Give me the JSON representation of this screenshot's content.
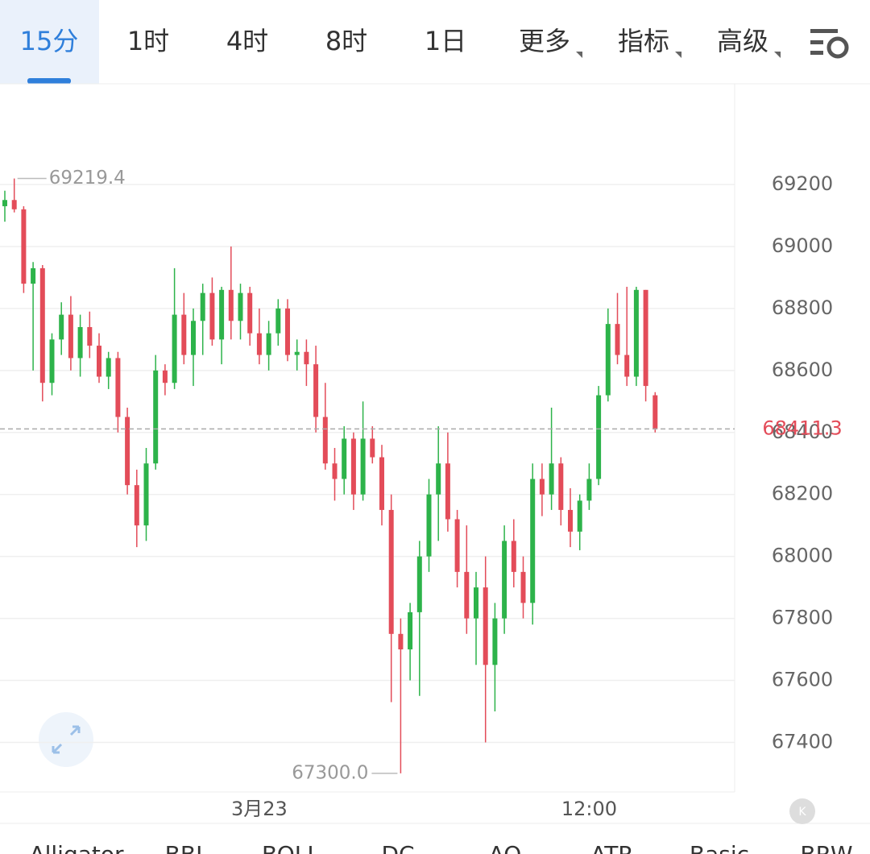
{
  "tabs": [
    "15分",
    "1时",
    "4时",
    "8时",
    "1日",
    "更多",
    "指标",
    "高级"
  ],
  "chart_data": {
    "type": "candlestick",
    "categories": [
      null,
      null,
      null,
      null,
      null,
      null,
      null,
      null,
      null,
      null,
      null,
      null,
      null,
      null,
      null,
      null,
      null,
      null,
      null,
      null,
      null,
      null,
      null,
      null,
      null,
      null,
      null,
      "3月23",
      null,
      null,
      null,
      null,
      null,
      null,
      null,
      null,
      null,
      null,
      null,
      null,
      null,
      null,
      null,
      null,
      null,
      null,
      null,
      null,
      null,
      null,
      null,
      null,
      null,
      null,
      null,
      null,
      null,
      null,
      null,
      null,
      null,
      null,
      "12:00",
      null,
      null,
      null,
      null,
      null,
      null,
      null
    ],
    "open": [
      69130,
      69150,
      69120,
      68880,
      68930,
      68560,
      68700,
      68780,
      68640,
      68740,
      68680,
      68580,
      68640,
      68450,
      68230,
      68100,
      68300,
      68600,
      68560,
      68780,
      68650,
      68760,
      68850,
      68700,
      68860,
      68760,
      68850,
      68720,
      68650,
      68720,
      68800,
      68650,
      68660,
      68620,
      68450,
      68300,
      68250,
      68380,
      68200,
      68380,
      68320,
      68150,
      67750,
      67700,
      67820,
      68000,
      68200,
      68300,
      68120,
      67950,
      67800,
      67900,
      67650,
      67800,
      68050,
      67950,
      67850,
      68250,
      68200,
      68300,
      68150,
      68080,
      68180,
      68250,
      68520,
      68750,
      68650,
      68580,
      68860,
      68520
    ],
    "high": [
      69180,
      69219.4,
      69130,
      68950,
      68940,
      68720,
      68820,
      68840,
      68780,
      68790,
      68720,
      68660,
      68660,
      68480,
      68280,
      68350,
      68650,
      68620,
      68930,
      68850,
      68800,
      68880,
      68900,
      68870,
      69000,
      68880,
      68870,
      68800,
      68760,
      68830,
      68830,
      68700,
      68700,
      68680,
      68560,
      68350,
      68420,
      68400,
      68500,
      68420,
      68360,
      68200,
      67800,
      67850,
      68050,
      68250,
      68420,
      68400,
      68150,
      68100,
      67950,
      68000,
      67850,
      68100,
      68120,
      68000,
      68300,
      68300,
      68480,
      68320,
      68220,
      68200,
      68300,
      68550,
      68800,
      68850,
      68870,
      68870,
      68860,
      68530
    ],
    "low": [
      69080,
      69110,
      68850,
      68600,
      68500,
      68520,
      68650,
      68600,
      68580,
      68640,
      68560,
      68540,
      68400,
      68200,
      68030,
      68050,
      68280,
      68520,
      68540,
      68620,
      68550,
      68650,
      68680,
      68620,
      68700,
      68700,
      68680,
      68620,
      68600,
      68680,
      68630,
      68600,
      68550,
      68400,
      68280,
      68180,
      68200,
      68150,
      68180,
      68300,
      68100,
      67530,
      67300,
      67600,
      67550,
      67950,
      68050,
      68080,
      67900,
      67750,
      67650,
      67400,
      67500,
      67750,
      67900,
      67800,
      67780,
      68130,
      68150,
      68100,
      68030,
      68020,
      68150,
      68230,
      68500,
      68620,
      68550,
      68550,
      68500,
      68400
    ],
    "close": [
      69150,
      69120,
      68880,
      68930,
      68560,
      68700,
      68780,
      68640,
      68740,
      68680,
      68580,
      68640,
      68450,
      68230,
      68100,
      68300,
      68600,
      68560,
      68780,
      68650,
      68760,
      68850,
      68700,
      68860,
      68760,
      68850,
      68720,
      68650,
      68720,
      68800,
      68650,
      68660,
      68620,
      68450,
      68300,
      68250,
      68380,
      68200,
      68380,
      68320,
      68150,
      67750,
      67700,
      67820,
      68000,
      68200,
      68300,
      68120,
      67950,
      67800,
      67900,
      67650,
      67800,
      68050,
      67950,
      67850,
      68250,
      68200,
      68300,
      68150,
      68080,
      68180,
      68250,
      68520,
      68750,
      68650,
      68580,
      68860,
      68550,
      68411.3
    ],
    "up_color": "#2db34a",
    "down_color": "#e34c59",
    "ylim": [
      67240,
      69525
    ],
    "yticks": [
      67400,
      67600,
      67800,
      68000,
      68200,
      68400,
      68600,
      68800,
      69000,
      69200
    ],
    "grid": true,
    "max_marker": 69219.4,
    "min_marker": {
      "value": 67300,
      "label": "67300.0"
    },
    "last_price": 68411.3
  },
  "indicators": [
    "Alligator",
    "BBI",
    "BOLL",
    "DC",
    "AO",
    "ATR",
    "Basic",
    "BRW"
  ]
}
